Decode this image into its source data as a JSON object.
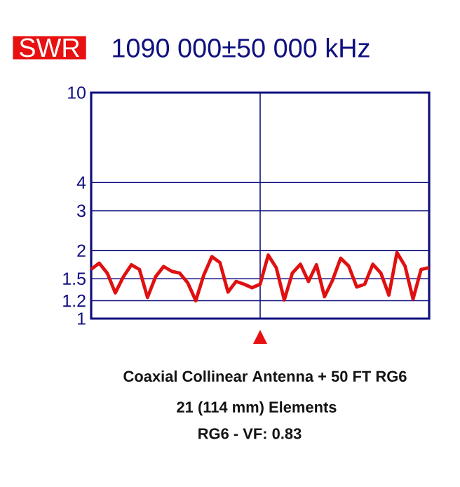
{
  "chart_data": {
    "type": "line",
    "title": "SWR",
    "subtitle": "1090 000±50 000 kHz",
    "annotations": [
      "Coaxial Collinear Antenna  + 50 FT  RG6",
      "21 (114 mm) Elements",
      "RG6   - VF: 0.83"
    ],
    "categories": [
      null,
      null,
      null,
      null,
      null,
      null,
      null,
      null,
      null,
      null,
      null,
      null,
      null,
      null,
      null,
      null,
      null,
      null,
      null,
      null,
      null,
      null,
      null,
      null,
      null,
      null,
      null,
      null,
      null,
      null,
      null,
      null,
      null,
      null,
      null,
      null,
      null,
      null,
      null,
      null,
      null,
      null,
      null
    ],
    "ylim": [
      1,
      10
    ],
    "yticks": [
      1,
      1.2,
      1.5,
      2,
      3,
      4,
      10
    ],
    "log": "y",
    "tick_labels": "y",
    "grid": "y",
    "series": [
      {
        "color": "#e01010",
        "values": [
          1.65,
          1.76,
          1.59,
          1.3,
          1.53,
          1.73,
          1.65,
          1.24,
          1.53,
          1.7,
          1.62,
          1.59,
          1.44,
          1.2,
          1.56,
          1.88,
          1.77,
          1.31,
          1.46,
          1.42,
          1.37,
          1.42,
          1.91,
          1.68,
          1.21,
          1.59,
          1.74,
          1.46,
          1.73,
          1.25,
          1.48,
          1.85,
          1.71,
          1.38,
          1.42,
          1.74,
          1.59,
          1.27,
          1.96,
          1.71,
          1.22,
          1.65,
          1.68
        ]
      }
    ]
  }
}
